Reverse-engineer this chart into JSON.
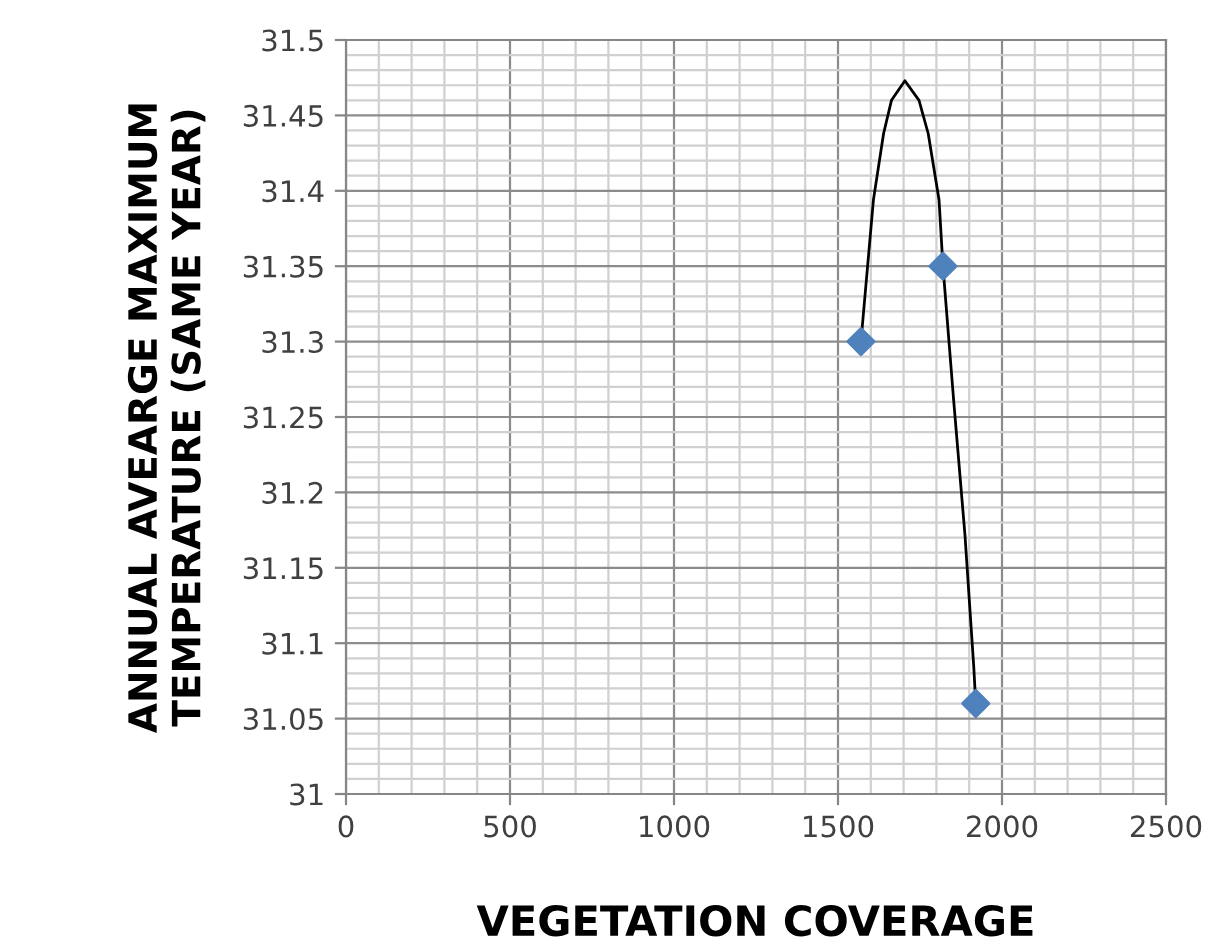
{
  "chart_data": {
    "type": "scatter",
    "xlabel": "VEGETATION COVERAGE",
    "ylabel": "ANNUAL AVEARGE MAXIMUM\nTEMPERATURE (SAME YEAR)",
    "series": [
      {
        "type": "line",
        "color": "#000000",
        "marker": "none",
        "x": [
          1570,
          1608,
          1639,
          1663,
          1704,
          1747,
          1775,
          1808,
          1820,
          1853,
          1887,
          1914,
          1920
        ],
        "values": [
          31.3,
          31.394,
          31.438,
          31.46,
          31.473,
          31.46,
          31.438,
          31.394,
          31.35,
          31.26,
          31.172,
          31.084,
          31.06
        ]
      },
      {
        "color": "#4f81bd",
        "marker": "diamond",
        "x": [
          1570,
          1820,
          1920
        ],
        "values": [
          31.3,
          31.35,
          31.06
        ]
      }
    ],
    "xlim": [
      0,
      2500
    ],
    "xticks": [
      0,
      {
        "value": 100,
        "label": null
      },
      {
        "value": 200,
        "label": null
      },
      {
        "value": 300,
        "label": null
      },
      {
        "value": 400,
        "label": null
      },
      500,
      {
        "value": 600,
        "label": null
      },
      {
        "value": 700,
        "label": null
      },
      {
        "value": 800,
        "label": null
      },
      {
        "value": 900,
        "label": null
      },
      1000,
      {
        "value": 1100,
        "label": null
      },
      {
        "value": 1200,
        "label": null
      },
      {
        "value": 1300,
        "label": null
      },
      {
        "value": 1400,
        "label": null
      },
      1500,
      {
        "value": 1600,
        "label": null
      },
      {
        "value": 1700,
        "label": null
      },
      {
        "value": 1800,
        "label": null
      },
      {
        "value": 1900,
        "label": null
      },
      2000,
      {
        "value": 2100,
        "label": null
      },
      {
        "value": 2200,
        "label": null
      },
      {
        "value": 2300,
        "label": null
      },
      {
        "value": 2400,
        "label": null
      },
      2500
    ],
    "ylim": [
      31,
      31.5
    ],
    "yticks": [
      31,
      {
        "value": 31.01,
        "label": null
      },
      {
        "value": 31.02,
        "label": null
      },
      {
        "value": 31.03,
        "label": null
      },
      {
        "value": 31.04,
        "label": null
      },
      31.05,
      {
        "value": 31.06,
        "label": null
      },
      {
        "value": 31.07,
        "label": null
      },
      {
        "value": 31.08,
        "label": null
      },
      {
        "value": 31.09,
        "label": null
      },
      31.1,
      {
        "value": 31.11,
        "label": null
      },
      {
        "value": 31.12,
        "label": null
      },
      {
        "value": 31.13,
        "label": null
      },
      {
        "value": 31.14,
        "label": null
      },
      31.15,
      {
        "value": 31.16,
        "label": null
      },
      {
        "value": 31.17,
        "label": null
      },
      {
        "value": 31.18,
        "label": null
      },
      {
        "value": 31.19,
        "label": null
      },
      31.2,
      {
        "value": 31.21,
        "label": null
      },
      {
        "value": 31.22,
        "label": null
      },
      {
        "value": 31.23,
        "label": null
      },
      {
        "value": 31.24,
        "label": null
      },
      31.25,
      {
        "value": 31.26,
        "label": null
      },
      {
        "value": 31.27,
        "label": null
      },
      {
        "value": 31.28,
        "label": null
      },
      {
        "value": 31.29,
        "label": null
      },
      31.3,
      {
        "value": 31.31,
        "label": null
      },
      {
        "value": 31.32,
        "label": null
      },
      {
        "value": 31.33,
        "label": null
      },
      {
        "value": 31.34,
        "label": null
      },
      31.35,
      {
        "value": 31.36,
        "label": null
      },
      {
        "value": 31.37,
        "label": null
      },
      {
        "value": 31.38,
        "label": null
      },
      {
        "value": 31.39,
        "label": null
      },
      31.4,
      {
        "value": 31.41,
        "label": null
      },
      {
        "value": 31.42,
        "label": null
      },
      {
        "value": 31.43,
        "label": null
      },
      {
        "value": 31.44,
        "label": null
      },
      31.45,
      {
        "value": 31.46,
        "label": null
      },
      {
        "value": 31.47,
        "label": null
      },
      {
        "value": 31.48,
        "label": null
      },
      {
        "value": 31.49,
        "label": null
      },
      31.5
    ],
    "grid": true,
    "legend": false
  }
}
